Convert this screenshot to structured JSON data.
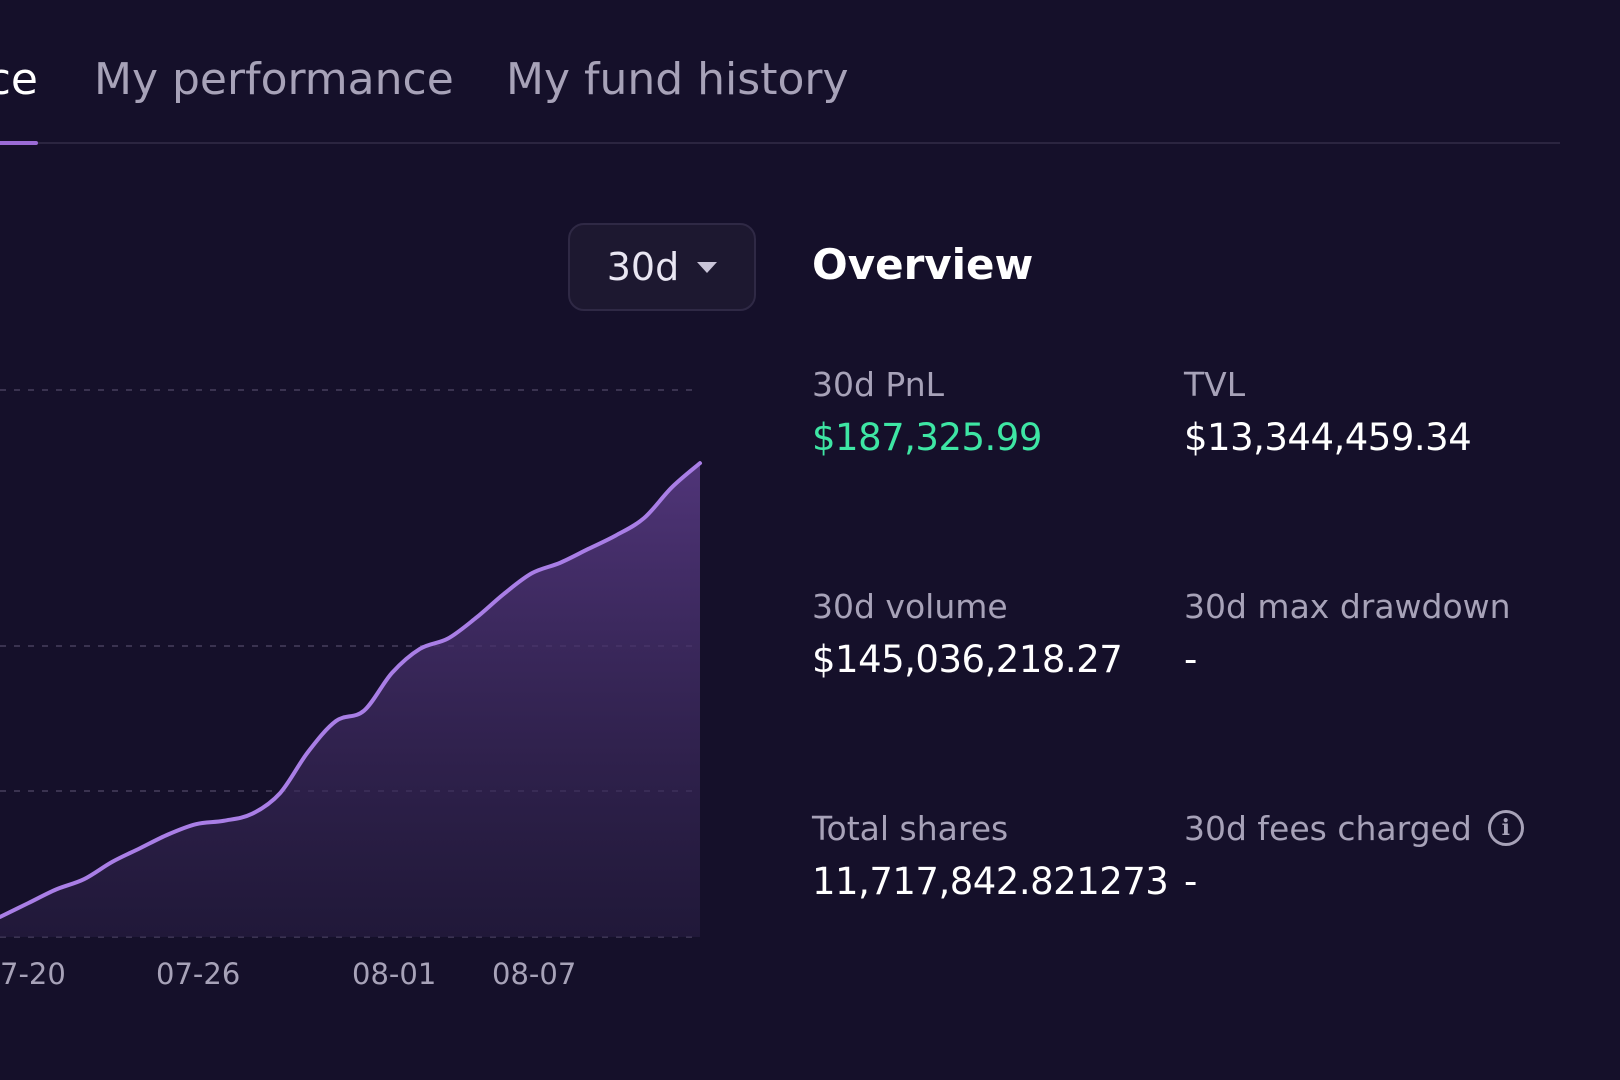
{
  "tabs": {
    "active_label": "Vault performance",
    "performance_label": "My performance",
    "history_label": "My fund history"
  },
  "period_select": {
    "value": "30d"
  },
  "overview": {
    "title": "Overview",
    "pnl_label": "30d PnL",
    "pnl_value": "$187,325.99",
    "tvl_label": "TVL",
    "tvl_value": "$13,344,459.34",
    "volume_label": "30d volume",
    "volume_value": "$145,036,218.27",
    "drawdown_label": "30d max drawdown",
    "drawdown_value": "-",
    "shares_label": "Total shares",
    "shares_value": "11,717,842.821273",
    "fees_label": "30d fees charged",
    "fees_value": "-"
  },
  "colors": {
    "background": "#15102a",
    "accent": "#9b6bd6",
    "positive": "#3ee6a4"
  },
  "chart_data": {
    "type": "area",
    "x_ticks": [
      "7-20",
      "07-26",
      "08-01",
      "08-07"
    ],
    "x_tick_positions": [
      0,
      7,
      14,
      19
    ],
    "x": [
      0,
      1,
      2,
      3,
      4,
      5,
      6,
      7,
      8,
      9,
      10,
      11,
      12,
      13,
      14,
      15,
      16,
      17,
      18,
      19,
      20,
      21,
      22,
      23,
      24,
      25
    ],
    "values": [
      0,
      4,
      8,
      11,
      16,
      20,
      24,
      27,
      28,
      30,
      36,
      48,
      57,
      60,
      71,
      78,
      81,
      87,
      94,
      100,
      103,
      107,
      111,
      116,
      125,
      132
    ],
    "ylim": [
      0,
      140
    ],
    "grid": "dashed-horizontal"
  }
}
